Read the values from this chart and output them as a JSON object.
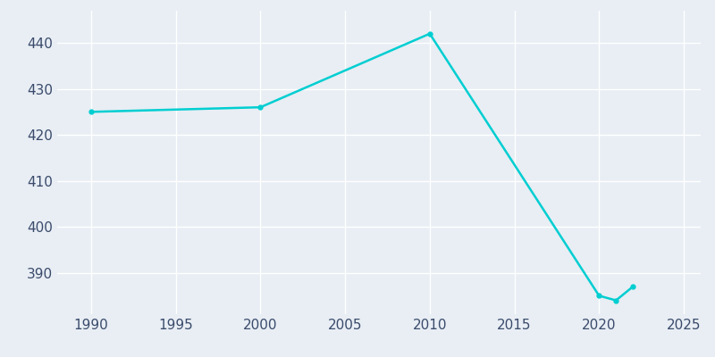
{
  "years": [
    1990,
    2000,
    2010,
    2020,
    2021,
    2022
  ],
  "population": [
    425,
    426,
    442,
    385,
    384,
    387
  ],
  "line_color": "#00CED1",
  "bg_color": "#E8EEF4",
  "grid_color": "#FFFFFF",
  "text_color": "#3A4A6B",
  "xlim": [
    1988,
    2026
  ],
  "ylim": [
    381,
    447
  ],
  "xticks": [
    1990,
    1995,
    2000,
    2005,
    2010,
    2015,
    2020,
    2025
  ],
  "yticks": [
    390,
    400,
    410,
    420,
    430,
    440
  ],
  "line_width": 1.8,
  "marker": "o",
  "marker_size": 3.5,
  "tick_fontsize": 11
}
